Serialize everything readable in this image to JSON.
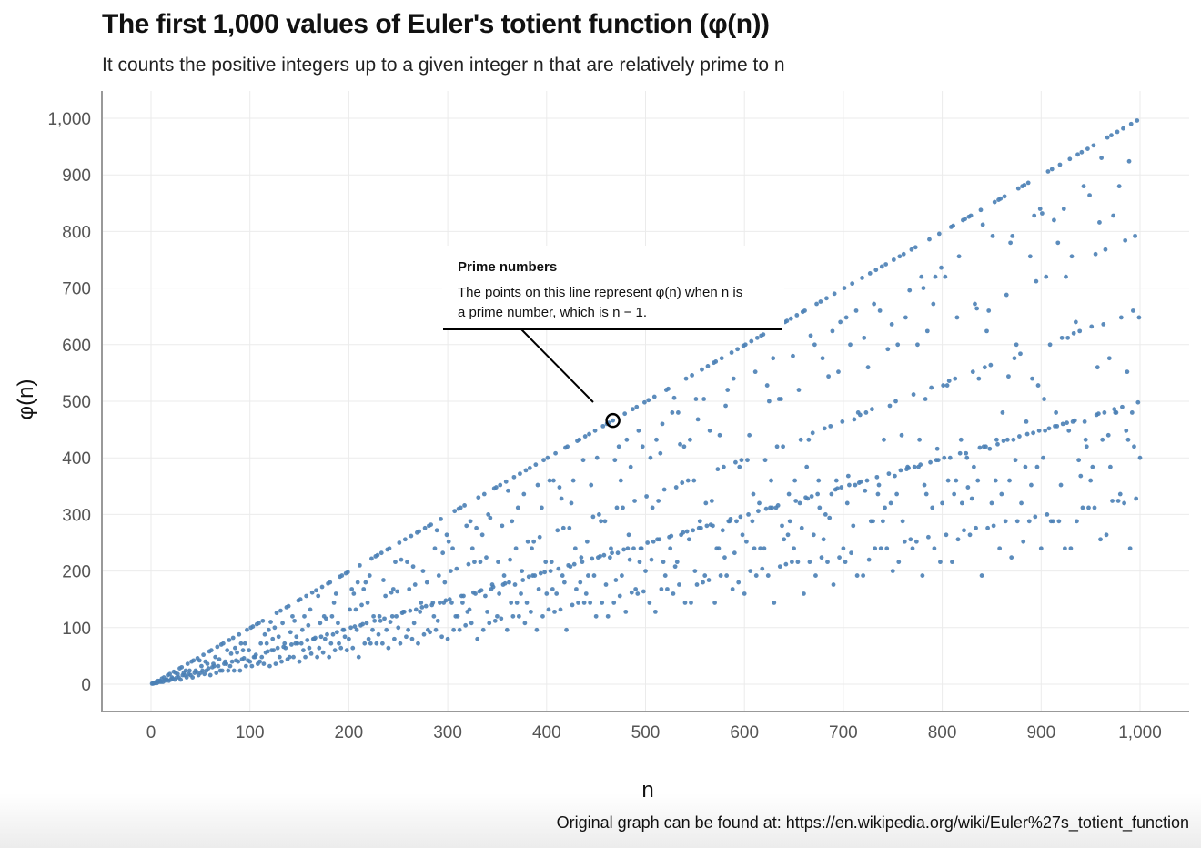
{
  "title": "The first 1,000 values of Euler's totient function (φ(n))",
  "subtitle": "It counts the positive integers up to a given integer n that are relatively prime to n",
  "caption": "Original graph can be found at: https://en.wikipedia.org/wiki/Euler%27s_totient_function",
  "colors": {
    "points": "#4a7fb5",
    "grid": "#ebebeb",
    "axis": "#999999",
    "annotation": "#000000"
  },
  "chart_data": {
    "type": "scatter",
    "title": "The first 1,000 values of Euler's totient function (φ(n))",
    "xlabel": "n",
    "ylabel": "φ(n)",
    "xlim": [
      1,
      1000
    ],
    "ylim": [
      0,
      1000
    ],
    "x_ticks": [
      0,
      100,
      200,
      300,
      400,
      500,
      600,
      700,
      800,
      900,
      1000
    ],
    "y_ticks": [
      0,
      100,
      200,
      300,
      400,
      500,
      600,
      700,
      800,
      900,
      1000
    ],
    "x_tick_labels": [
      "0",
      "100",
      "200",
      "300",
      "400",
      "500",
      "600",
      "700",
      "800",
      "900",
      "1,000"
    ],
    "y_tick_labels": [
      "0",
      "100",
      "200",
      "300",
      "400",
      "500",
      "600",
      "700",
      "800",
      "900",
      "1,000"
    ],
    "grid": true,
    "series": [
      {
        "x_range": [
          1,
          1000
        ],
        "y_rule": "φ(n) — Euler's totient of n, for every integer n from 1 to 1000"
      }
    ],
    "highlight": {
      "x": 467,
      "y": 466
    },
    "annotation": {
      "title": "Prime numbers",
      "lines": [
        "The points on this line represent φ(n) when n is",
        "a prime number, which is n − 1."
      ]
    }
  }
}
